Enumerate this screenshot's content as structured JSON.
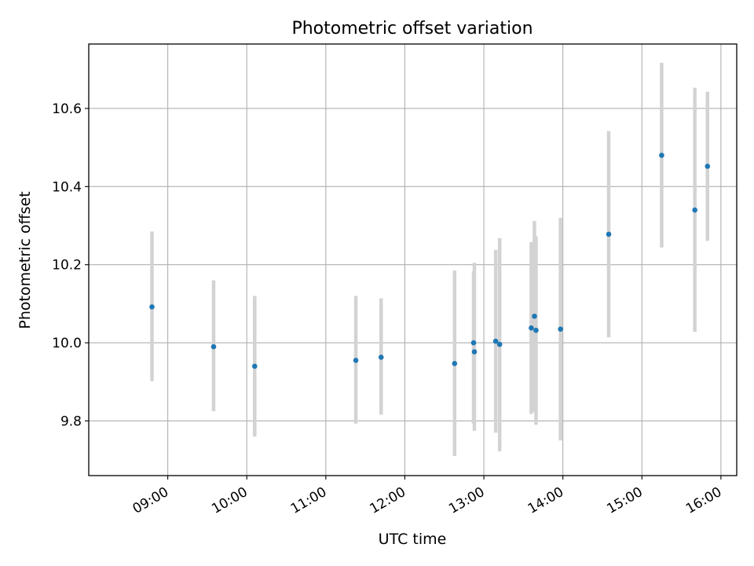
{
  "chart_data": {
    "type": "scatter",
    "title": "Photometric offset variation",
    "xlabel": "UTC time",
    "ylabel": "Photometric offset",
    "x_unit": "hours",
    "xlim": [
      8.0,
      16.2
    ],
    "ylim": [
      9.66,
      10.765
    ],
    "x_ticks": [
      {
        "label": "09:00",
        "value": 9
      },
      {
        "label": "10:00",
        "value": 10
      },
      {
        "label": "11:00",
        "value": 11
      },
      {
        "label": "12:00",
        "value": 12
      },
      {
        "label": "13:00",
        "value": 13
      },
      {
        "label": "14:00",
        "value": 14
      },
      {
        "label": "15:00",
        "value": 15
      },
      {
        "label": "16:00",
        "value": 16
      }
    ],
    "y_ticks": [
      {
        "label": "9.8",
        "value": 9.8
      },
      {
        "label": "10.0",
        "value": 10.0
      },
      {
        "label": "10.2",
        "value": 10.2
      },
      {
        "label": "10.4",
        "value": 10.4
      },
      {
        "label": "10.6",
        "value": 10.6
      }
    ],
    "grid": true,
    "marker_color": "#1f77b4",
    "errorbar_color": "#d3d3d3",
    "points": [
      {
        "x": 8.8,
        "y": 10.092,
        "lo": 9.902,
        "hi": 10.285
      },
      {
        "x": 9.58,
        "y": 9.99,
        "lo": 9.825,
        "hi": 10.16
      },
      {
        "x": 10.1,
        "y": 9.94,
        "lo": 9.76,
        "hi": 10.12
      },
      {
        "x": 11.38,
        "y": 9.955,
        "lo": 9.793,
        "hi": 10.12
      },
      {
        "x": 11.7,
        "y": 9.963,
        "lo": 9.816,
        "hi": 10.114
      },
      {
        "x": 12.63,
        "y": 9.947,
        "lo": 9.71,
        "hi": 10.185
      },
      {
        "x": 12.87,
        "y": 10.0,
        "lo": 9.793,
        "hi": 10.183
      },
      {
        "x": 12.88,
        "y": 9.977,
        "lo": 9.775,
        "hi": 10.205
      },
      {
        "x": 13.15,
        "y": 10.004,
        "lo": 9.77,
        "hi": 10.238
      },
      {
        "x": 13.2,
        "y": 9.996,
        "lo": 9.722,
        "hi": 10.268
      },
      {
        "x": 13.6,
        "y": 10.038,
        "lo": 9.818,
        "hi": 10.258
      },
      {
        "x": 13.64,
        "y": 10.068,
        "lo": 9.823,
        "hi": 10.312
      },
      {
        "x": 13.66,
        "y": 10.032,
        "lo": 9.79,
        "hi": 10.273
      },
      {
        "x": 13.97,
        "y": 10.035,
        "lo": 9.75,
        "hi": 10.32
      },
      {
        "x": 14.58,
        "y": 10.278,
        "lo": 10.014,
        "hi": 10.542
      },
      {
        "x": 15.25,
        "y": 10.48,
        "lo": 10.244,
        "hi": 10.717
      },
      {
        "x": 15.67,
        "y": 10.34,
        "lo": 10.028,
        "hi": 10.653
      },
      {
        "x": 15.83,
        "y": 10.452,
        "lo": 10.261,
        "hi": 10.643
      }
    ]
  }
}
